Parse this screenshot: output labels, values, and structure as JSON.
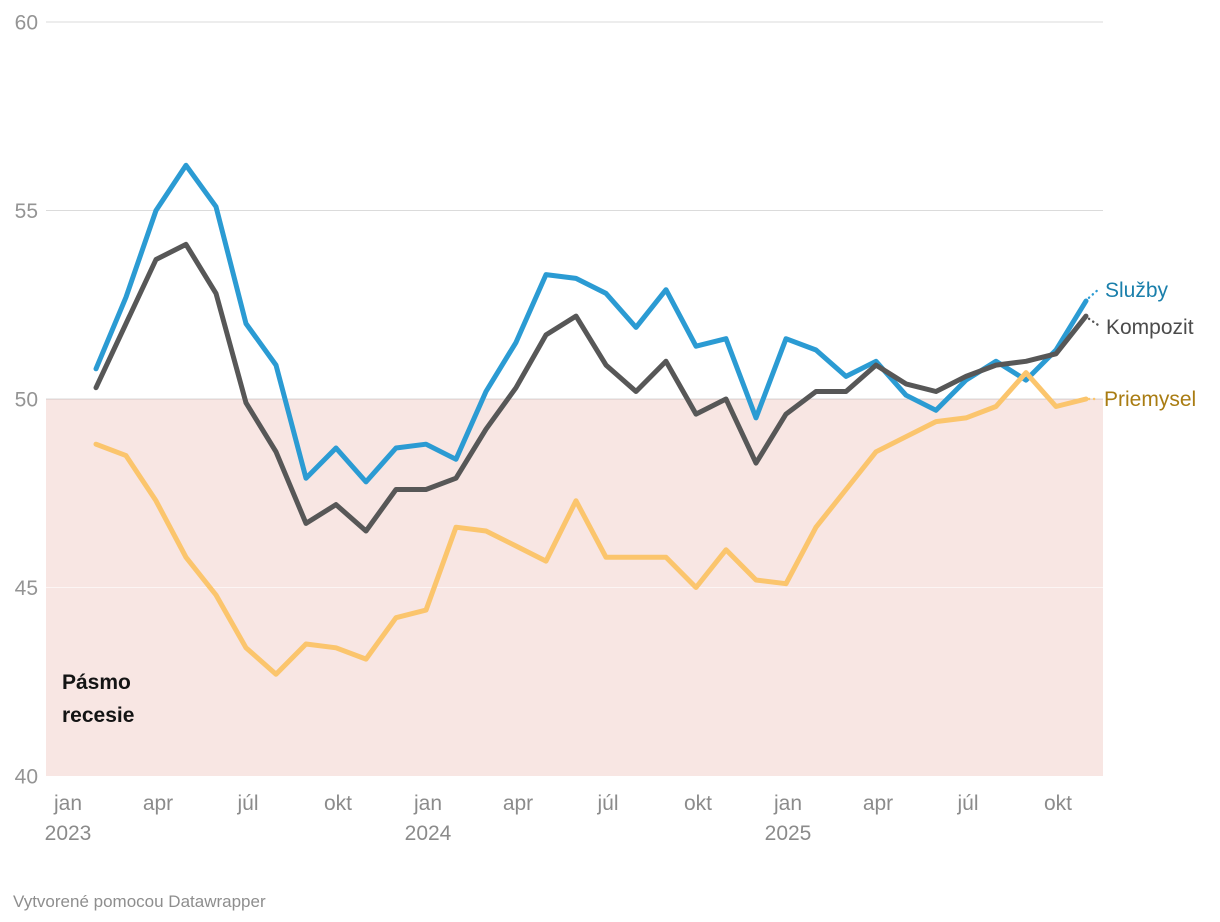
{
  "chart_data": {
    "type": "line",
    "x": [
      "jan 2023",
      "feb 2023",
      "mar 2023",
      "apr 2023",
      "máj 2023",
      "jún 2023",
      "júl 2023",
      "aug 2023",
      "sep 2023",
      "okt 2023",
      "nov 2023",
      "dec 2023",
      "jan 2024",
      "feb 2024",
      "mar 2024",
      "apr 2024",
      "máj 2024",
      "jún 2024",
      "júl 2024",
      "aug 2024",
      "sep 2024",
      "okt 2024",
      "nov 2024",
      "dec 2024",
      "jan 2025",
      "feb 2025",
      "mar 2025",
      "apr 2025",
      "máj 2025",
      "jún 2025",
      "júl 2025",
      "aug 2025",
      "sep 2025",
      "okt 2025"
    ],
    "series": [
      {
        "name": "Služby",
        "color": "#2B9BD3",
        "label_color": "#1A7FAB",
        "values": [
          50.8,
          52.7,
          55.0,
          56.2,
          55.1,
          52.0,
          50.9,
          47.9,
          48.7,
          47.8,
          48.7,
          48.8,
          48.4,
          50.2,
          51.5,
          53.3,
          53.2,
          52.8,
          51.9,
          52.9,
          51.4,
          51.6,
          49.5,
          51.6,
          51.3,
          50.6,
          51.0,
          50.1,
          49.7,
          50.5,
          51.0,
          50.5,
          51.3,
          52.6
        ]
      },
      {
        "name": "Kompozit",
        "color": "#575757",
        "label_color": "#4B4B4B",
        "values": [
          50.3,
          52.0,
          53.7,
          54.1,
          52.8,
          49.9,
          48.6,
          46.7,
          47.2,
          46.5,
          47.6,
          47.6,
          47.9,
          49.2,
          50.3,
          51.7,
          52.2,
          50.9,
          50.2,
          51.0,
          49.6,
          50.0,
          48.3,
          49.6,
          50.2,
          50.2,
          50.9,
          50.4,
          50.2,
          50.6,
          50.9,
          51.0,
          51.2,
          52.2
        ]
      },
      {
        "name": "Priemysel",
        "color": "#FBC56D",
        "label_color": "#A97C12",
        "values": [
          48.8,
          48.5,
          47.3,
          45.8,
          44.8,
          43.4,
          42.7,
          43.5,
          43.4,
          43.1,
          44.2,
          44.4,
          46.6,
          46.5,
          46.1,
          45.7,
          47.3,
          45.8,
          45.8,
          45.8,
          45.0,
          46.0,
          45.2,
          45.1,
          46.6,
          47.6,
          48.6,
          49.0,
          49.4,
          49.5,
          49.8,
          50.7,
          49.8,
          50.0
        ]
      }
    ],
    "ylim": [
      40,
      60
    ],
    "yticks": [
      40,
      45,
      50,
      55,
      60
    ],
    "xticks": [
      {
        "i": 0,
        "label": "jan",
        "year": "2023"
      },
      {
        "i": 3,
        "label": "apr"
      },
      {
        "i": 6,
        "label": "júl"
      },
      {
        "i": 9,
        "label": "okt"
      },
      {
        "i": 12,
        "label": "jan",
        "year": "2024"
      },
      {
        "i": 15,
        "label": "apr"
      },
      {
        "i": 18,
        "label": "júl"
      },
      {
        "i": 21,
        "label": "okt"
      },
      {
        "i": 24,
        "label": "jan",
        "year": "2025"
      },
      {
        "i": 27,
        "label": "apr"
      },
      {
        "i": 30,
        "label": "júl"
      },
      {
        "i": 33,
        "label": "okt"
      }
    ],
    "recession_band": {
      "label": "Pásmo recesie",
      "from": 40,
      "to": 50,
      "color": "#F8E6E3"
    },
    "grid": true,
    "legend_position": "right-of-line-ends",
    "colors": {
      "gridline": "#DBDBDB",
      "y_tick_text": "#949494",
      "x_tick_text": "#8B8B8B",
      "annotation_text": "#141414",
      "footer_text": "#8E8E8E"
    }
  },
  "footer": {
    "credit": "Vytvorené pomocou Datawrapper"
  }
}
